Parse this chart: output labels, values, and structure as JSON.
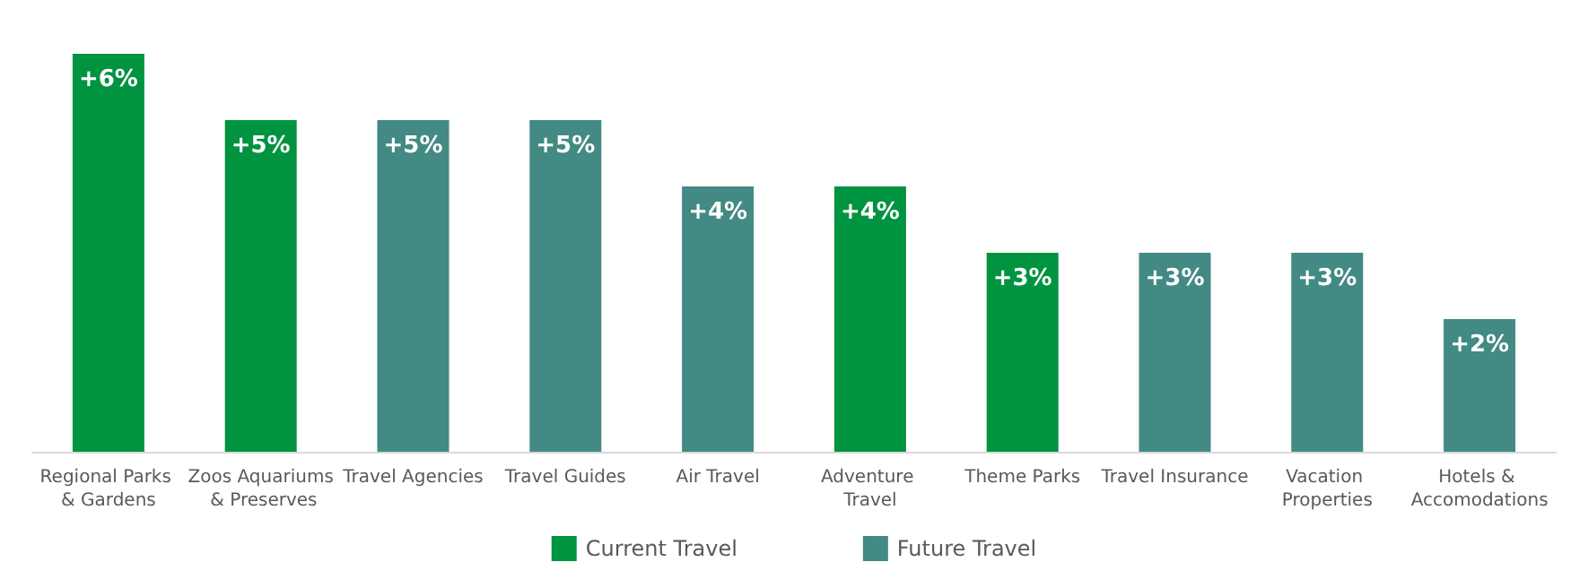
{
  "chart_data": {
    "type": "bar",
    "categories": [
      "Regional Parks & Gardens",
      "Zoos Aquariums & Preserves",
      "Travel Agencies",
      "Travel Guides",
      "Air Travel",
      "Adventure Travel",
      "Theme Parks",
      "Travel Insurance",
      "Vacation Properties",
      "Hotels & Accomodations"
    ],
    "series": [
      {
        "name": "Current Travel",
        "color": "#009340",
        "values": [
          6,
          5,
          null,
          null,
          null,
          4,
          3,
          null,
          null,
          null
        ],
        "value_labels": [
          "+6%",
          "+5%",
          null,
          null,
          null,
          "+4%",
          "+3%",
          null,
          null,
          null
        ]
      },
      {
        "name": "Future Travel",
        "color": "#428a83",
        "values": [
          null,
          null,
          5,
          5,
          4,
          null,
          null,
          3,
          3,
          2
        ],
        "value_labels": [
          null,
          null,
          "+5%",
          "+5%",
          "+4%",
          null,
          null,
          "+3%",
          "+3%",
          "+2%"
        ]
      }
    ],
    "legend": "bottom"
  }
}
